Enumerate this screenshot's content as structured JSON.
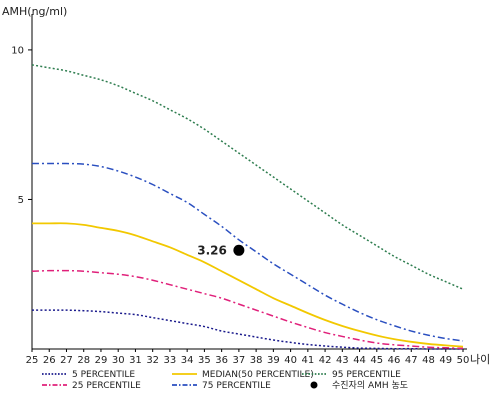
{
  "chart_data": {
    "type": "line",
    "ylabel": "AMH(ng/ml)",
    "xlabel": "나이",
    "xlim": [
      25,
      50
    ],
    "ylim": [
      0,
      11
    ],
    "yticks": [
      5,
      10
    ],
    "x": [
      25,
      26,
      27,
      28,
      29,
      30,
      31,
      32,
      33,
      34,
      35,
      36,
      37,
      38,
      39,
      40,
      41,
      42,
      43,
      44,
      45,
      46,
      47,
      48,
      49,
      50
    ],
    "series": [
      {
        "name": "5 PERCENTILE",
        "color": "#1a1a8c",
        "dash": "dotted",
        "values": [
          1.3,
          1.3,
          1.3,
          1.28,
          1.25,
          1.2,
          1.15,
          1.05,
          0.95,
          0.85,
          0.75,
          0.6,
          0.5,
          0.4,
          0.3,
          0.22,
          0.15,
          0.1,
          0.06,
          0.03,
          0.02,
          0.01,
          0.01,
          0.0,
          0.0,
          0.0
        ]
      },
      {
        "name": "25 PERCENTILE",
        "color": "#e0207a",
        "dash": "dashdot",
        "values": [
          2.6,
          2.62,
          2.62,
          2.6,
          2.55,
          2.5,
          2.42,
          2.3,
          2.15,
          2.0,
          1.85,
          1.7,
          1.5,
          1.3,
          1.1,
          0.9,
          0.72,
          0.55,
          0.42,
          0.3,
          0.2,
          0.14,
          0.1,
          0.06,
          0.04,
          0.02
        ]
      },
      {
        "name": "MEDIAN(50 PERCENTILE)",
        "color": "#f2c800",
        "dash": "solid",
        "values": [
          4.2,
          4.2,
          4.2,
          4.15,
          4.05,
          3.95,
          3.8,
          3.6,
          3.4,
          3.15,
          2.9,
          2.6,
          2.3,
          2.0,
          1.7,
          1.45,
          1.2,
          0.97,
          0.77,
          0.6,
          0.45,
          0.33,
          0.24,
          0.17,
          0.12,
          0.08
        ]
      },
      {
        "name": "75 PERCENTILE",
        "color": "#2a4fc0",
        "dash": "dashdot",
        "values": [
          6.2,
          6.2,
          6.2,
          6.18,
          6.1,
          5.95,
          5.75,
          5.5,
          5.2,
          4.9,
          4.5,
          4.1,
          3.65,
          3.25,
          2.85,
          2.5,
          2.15,
          1.8,
          1.5,
          1.22,
          0.98,
          0.78,
          0.6,
          0.46,
          0.35,
          0.27
        ]
      },
      {
        "name": "95 PERCENTILE",
        "color": "#2e7d4f",
        "dash": "dotted",
        "values": [
          9.5,
          9.4,
          9.3,
          9.15,
          9.0,
          8.8,
          8.55,
          8.3,
          8.0,
          7.7,
          7.35,
          6.95,
          6.55,
          6.15,
          5.75,
          5.35,
          4.95,
          4.55,
          4.15,
          3.8,
          3.45,
          3.1,
          2.8,
          2.5,
          2.25,
          2.0
        ]
      }
    ],
    "highlight": {
      "label": "3.26",
      "x": 37,
      "y": 3.3,
      "color": "#000000"
    },
    "legend": {
      "placement": "bottom",
      "items": [
        {
          "label": "5 PERCENTILE",
          "series": 0
        },
        {
          "label": "25 PERCENTILE",
          "series": 1
        },
        {
          "label": "MEDIAN(50 PERCENTILE)",
          "series": 2
        },
        {
          "label": "75 PERCENTILE",
          "series": 3
        },
        {
          "label": "95 PERCENTILE",
          "series": 4
        },
        {
          "label": "수진자의 AMH 농도",
          "marker": "dot"
        }
      ]
    }
  }
}
